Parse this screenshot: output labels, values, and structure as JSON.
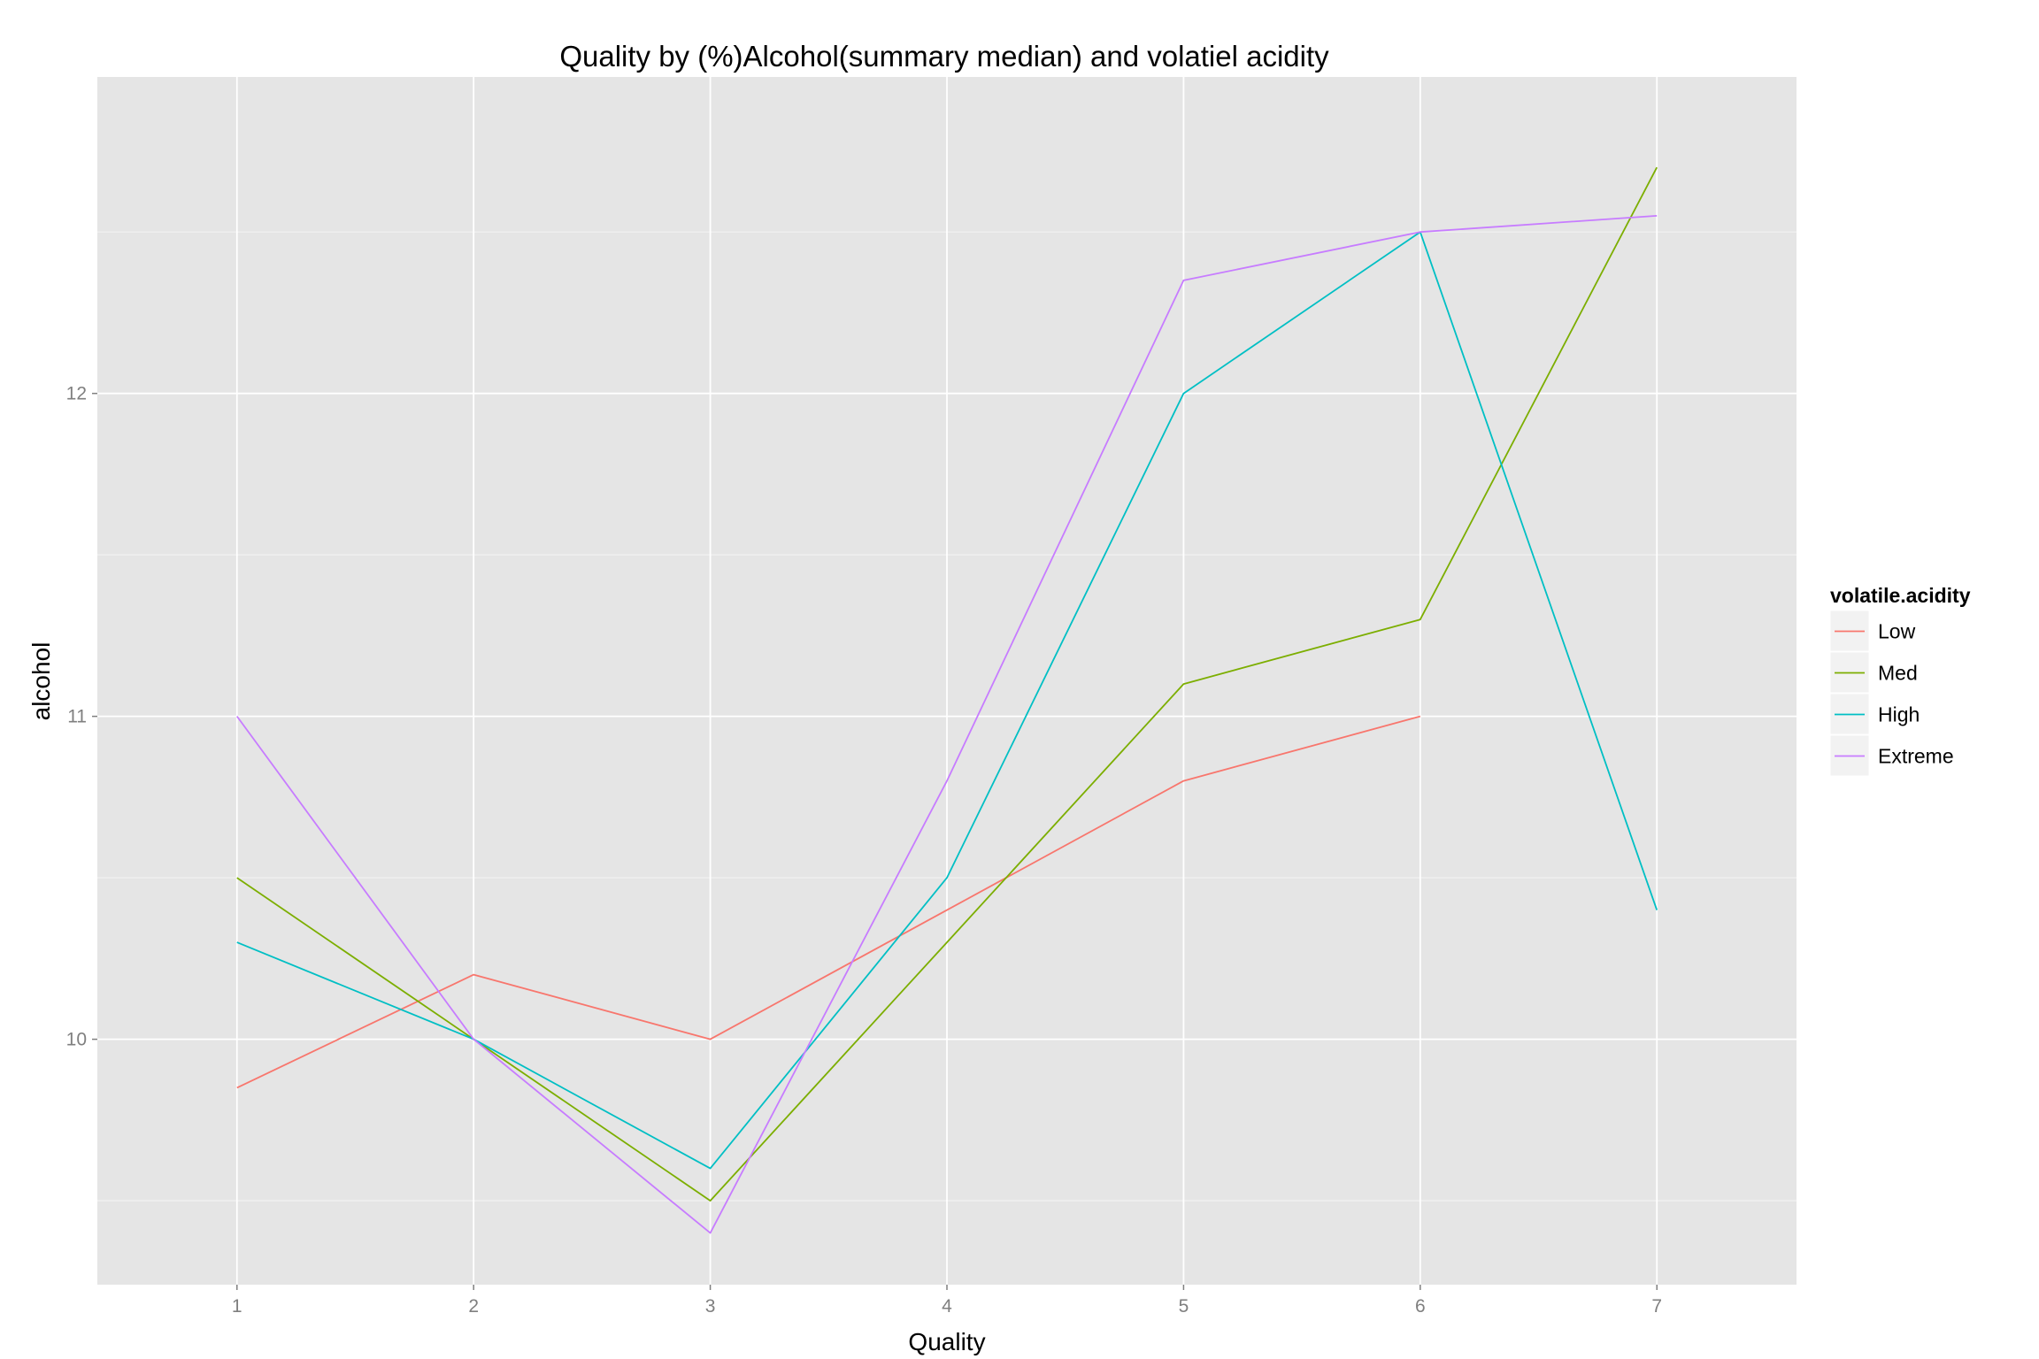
{
  "chart_data": {
    "type": "line",
    "title": "Quality by (%)Alcohol(summary median) and volatiel acidity",
    "xlabel": "Quality",
    "ylabel": "alcohol",
    "x_ticks": [
      "1",
      "2",
      "3",
      "4",
      "5",
      "6",
      "7"
    ],
    "y_ticks": [
      "10",
      "11",
      "12"
    ],
    "xlim": [
      0.41,
      7.59
    ],
    "ylim": [
      9.24,
      12.98
    ],
    "grid": true,
    "legend": {
      "title": "volatile.acidity",
      "placement": "right"
    },
    "series": [
      {
        "name": "Low",
        "color": "#F8766D",
        "points": [
          [
            1,
            9.85
          ],
          [
            2,
            10.2
          ],
          [
            3,
            10.0
          ],
          [
            4,
            10.4
          ],
          [
            5,
            10.8
          ],
          [
            6,
            11.0
          ]
        ]
      },
      {
        "name": "Med",
        "color": "#7CAE00",
        "points": [
          [
            1,
            10.5
          ],
          [
            2,
            10.0
          ],
          [
            3,
            9.5
          ],
          [
            4,
            10.3
          ],
          [
            5,
            11.1
          ],
          [
            6,
            11.3
          ],
          [
            7,
            12.7
          ]
        ]
      },
      {
        "name": "High",
        "color": "#00BFC4",
        "points": [
          [
            1,
            10.3
          ],
          [
            2,
            10.0
          ],
          [
            3,
            9.6
          ],
          [
            4,
            10.5
          ],
          [
            5,
            12.0
          ],
          [
            6,
            12.5
          ],
          [
            7,
            10.4
          ]
        ]
      },
      {
        "name": "Extreme",
        "color": "#C77CFF",
        "points": [
          [
            1,
            11.0
          ],
          [
            2,
            10.0
          ],
          [
            3,
            9.4
          ],
          [
            4,
            10.8
          ],
          [
            5,
            12.35
          ],
          [
            6,
            12.5
          ],
          [
            7,
            12.55
          ]
        ]
      }
    ]
  }
}
